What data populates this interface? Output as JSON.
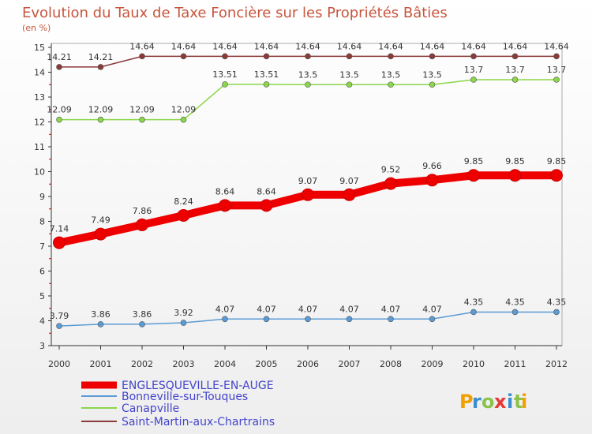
{
  "chart_data": {
    "type": "line",
    "title": "Evolution du Taux de Taxe Foncière sur les Propriétés Bâties",
    "ylabel": "(en %)",
    "xlabel": "",
    "categories": [
      "2000",
      "2001",
      "2002",
      "2003",
      "2004",
      "2005",
      "2006",
      "2007",
      "2008",
      "2009",
      "2010",
      "2011",
      "2012"
    ],
    "yticks": [
      "3",
      "4",
      "5",
      "6",
      "7",
      "8",
      "9",
      "10",
      "11",
      "12",
      "13",
      "14",
      "15"
    ],
    "ylim": [
      3,
      15
    ],
    "grid": false,
    "series": [
      {
        "name": "ENGLESQUEVILLE-EN-AUGE",
        "color": "#ee0000",
        "values": [
          7.14,
          7.49,
          7.86,
          8.24,
          8.64,
          8.64,
          9.07,
          9.07,
          9.52,
          9.66,
          9.85,
          9.85,
          9.85
        ],
        "labels": [
          "7.14",
          "7.49",
          "7.86",
          "8.24",
          "8.64",
          "8.64",
          "9.07",
          "9.07",
          "9.52",
          "9.66",
          "9.85",
          "9.85",
          "9.85"
        ]
      },
      {
        "name": "Bonneville-sur-Touques",
        "color": "#5b9bd5",
        "values": [
          3.79,
          3.86,
          3.86,
          3.92,
          4.07,
          4.07,
          4.07,
          4.07,
          4.07,
          4.07,
          4.35,
          4.35,
          4.35
        ],
        "labels": [
          "3.79",
          "3.86",
          "3.86",
          "3.92",
          "4.07",
          "4.07",
          "4.07",
          "4.07",
          "4.07",
          "4.07",
          "4.35",
          "4.35",
          "4.35"
        ]
      },
      {
        "name": "Canapville",
        "color": "#8bd64a",
        "values": [
          12.09,
          12.09,
          12.09,
          12.09,
          13.51,
          13.51,
          13.5,
          13.5,
          13.5,
          13.5,
          13.7,
          13.7,
          13.7
        ],
        "labels": [
          "12.09",
          "12.09",
          "12.09",
          "12.09",
          "13.51",
          "13.51",
          "13.5",
          "13.5",
          "13.5",
          "13.5",
          "13.7",
          "13.7",
          "13.7"
        ]
      },
      {
        "name": "Saint-Martin-aux-Chartrains",
        "color": "#8b3a3a",
        "values": [
          14.21,
          14.21,
          14.64,
          14.64,
          14.64,
          14.64,
          14.64,
          14.64,
          14.64,
          14.64,
          14.64,
          14.64,
          14.64
        ],
        "labels": [
          "14.21",
          "14.21",
          "14.64",
          "14.64",
          "14.64",
          "14.64",
          "14.64",
          "14.64",
          "14.64",
          "14.64",
          "14.64",
          "14.64",
          "14.64"
        ]
      }
    ],
    "legend_position": "bottom-left"
  },
  "logo": {
    "letters": [
      "P",
      "r",
      "o",
      "x",
      "i",
      "t",
      "i"
    ],
    "colors": [
      "#f0a000",
      "#3a8ed0",
      "#8bc34a",
      "#e53935",
      "#3a8ed0",
      "#8bc34a",
      "#f0a000"
    ]
  }
}
